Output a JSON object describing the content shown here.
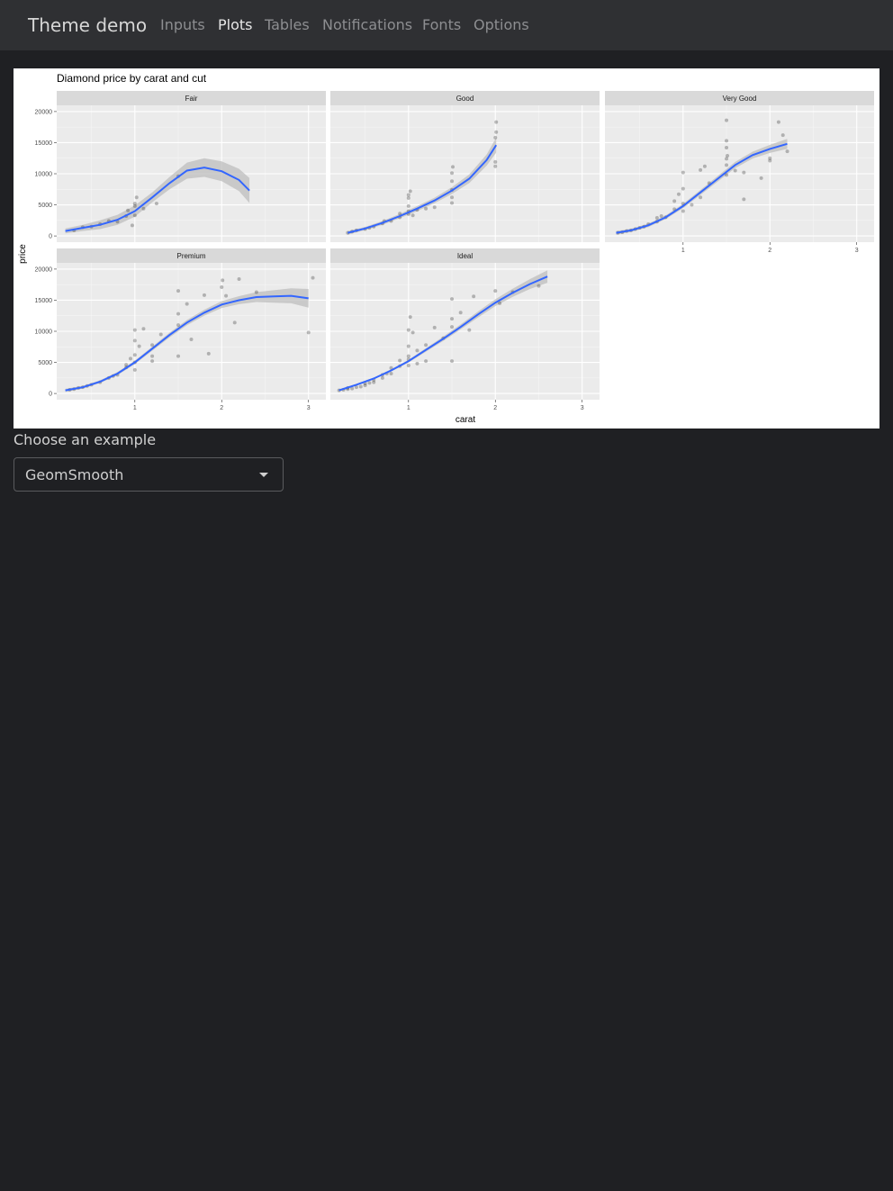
{
  "navbar": {
    "brand": "Theme demo",
    "items": [
      {
        "label": "Inputs",
        "active": false
      },
      {
        "label": "Plots",
        "active": true
      },
      {
        "label": "Tables",
        "active": false
      },
      {
        "label": "Notifications",
        "active": false
      },
      {
        "label": "Fonts",
        "active": false
      },
      {
        "label": "Options",
        "active": false
      }
    ]
  },
  "selector": {
    "label": "Choose an example",
    "value": "GeomSmooth"
  },
  "chart_data": {
    "type": "scatter",
    "title": "Diamond price by carat and cut",
    "xlabel": "carat",
    "ylabel": "price",
    "xlim": [
      0.1,
      3.2
    ],
    "ylim": [
      -1000,
      21000
    ],
    "xticks": [
      1,
      2,
      3
    ],
    "yticks": [
      0,
      5000,
      10000,
      15000,
      20000
    ],
    "grid": true,
    "colors": {
      "smooth": "#3366ff",
      "ribbon": "#bdbdbd",
      "points": "#000000",
      "panel": "#ebebeb",
      "strip": "#d9d9d9"
    },
    "facets": [
      {
        "name": "Fair",
        "points": [
          [
            0.3,
            900
          ],
          [
            0.4,
            1400
          ],
          [
            0.5,
            1500
          ],
          [
            0.6,
            1900
          ],
          [
            0.7,
            2400
          ],
          [
            0.8,
            2300
          ],
          [
            0.9,
            3200
          ],
          [
            0.92,
            4100
          ],
          [
            0.97,
            1700
          ],
          [
            1.0,
            3300
          ],
          [
            1.0,
            4800
          ],
          [
            1.0,
            5200
          ],
          [
            1.02,
            6200
          ],
          [
            1.1,
            4400
          ],
          [
            1.25,
            5200
          ],
          [
            1.5,
            9600
          ]
        ],
        "smooth": [
          [
            0.2,
            800
          ],
          [
            0.4,
            1300
          ],
          [
            0.6,
            1800
          ],
          [
            0.8,
            2600
          ],
          [
            1.0,
            4000
          ],
          [
            1.2,
            6200
          ],
          [
            1.4,
            8500
          ],
          [
            1.6,
            10500
          ],
          [
            1.8,
            11000
          ],
          [
            2.0,
            10400
          ],
          [
            2.2,
            9000
          ],
          [
            2.32,
            7300
          ]
        ],
        "band": [
          400,
          500,
          700,
          800,
          900,
          800,
          1000,
          1300,
          1500,
          1600,
          1800,
          2000
        ]
      },
      {
        "name": "Good",
        "points": [
          [
            0.3,
            500
          ],
          [
            0.35,
            700
          ],
          [
            0.4,
            900
          ],
          [
            0.5,
            1100
          ],
          [
            0.55,
            1300
          ],
          [
            0.6,
            1500
          ],
          [
            0.7,
            2000
          ],
          [
            0.72,
            2400
          ],
          [
            0.8,
            2400
          ],
          [
            0.9,
            3000
          ],
          [
            0.9,
            3600
          ],
          [
            1.0,
            3500
          ],
          [
            1.0,
            4000
          ],
          [
            1.0,
            4800
          ],
          [
            1.0,
            6100
          ],
          [
            1.0,
            6600
          ],
          [
            1.02,
            7200
          ],
          [
            1.05,
            3300
          ],
          [
            1.1,
            4200
          ],
          [
            1.2,
            4400
          ],
          [
            1.3,
            4600
          ],
          [
            1.5,
            5300
          ],
          [
            1.5,
            6200
          ],
          [
            1.5,
            7400
          ],
          [
            1.5,
            8800
          ],
          [
            1.5,
            10100
          ],
          [
            1.51,
            11100
          ],
          [
            2.0,
            11200
          ],
          [
            2.0,
            11900
          ],
          [
            2.0,
            15800
          ],
          [
            2.01,
            16700
          ],
          [
            2.01,
            18300
          ]
        ],
        "smooth": [
          [
            0.3,
            500
          ],
          [
            0.5,
            1200
          ],
          [
            0.7,
            2100
          ],
          [
            0.9,
            3200
          ],
          [
            1.1,
            4400
          ],
          [
            1.3,
            5700
          ],
          [
            1.5,
            7300
          ],
          [
            1.7,
            9200
          ],
          [
            1.9,
            12200
          ],
          [
            2.01,
            14600
          ]
        ],
        "band": [
          300,
          250,
          300,
          350,
          400,
          450,
          550,
          700,
          900,
          1200
        ]
      },
      {
        "name": "Very Good",
        "points": [
          [
            0.25,
            500
          ],
          [
            0.3,
            600
          ],
          [
            0.35,
            800
          ],
          [
            0.4,
            900
          ],
          [
            0.45,
            1100
          ],
          [
            0.5,
            1300
          ],
          [
            0.55,
            1500
          ],
          [
            0.6,
            1900
          ],
          [
            0.7,
            2300
          ],
          [
            0.7,
            2900
          ],
          [
            0.75,
            3200
          ],
          [
            0.8,
            3000
          ],
          [
            0.9,
            4300
          ],
          [
            0.9,
            5600
          ],
          [
            0.95,
            6700
          ],
          [
            1.0,
            4000
          ],
          [
            1.0,
            5200
          ],
          [
            1.0,
            7600
          ],
          [
            1.0,
            10200
          ],
          [
            1.1,
            5000
          ],
          [
            1.2,
            6200
          ],
          [
            1.2,
            10600
          ],
          [
            1.25,
            11200
          ],
          [
            1.3,
            8500
          ],
          [
            1.5,
            9800
          ],
          [
            1.5,
            11400
          ],
          [
            1.5,
            12400
          ],
          [
            1.5,
            14200
          ],
          [
            1.5,
            15300
          ],
          [
            1.5,
            18600
          ],
          [
            1.51,
            12900
          ],
          [
            1.6,
            10500
          ],
          [
            1.7,
            5900
          ],
          [
            1.7,
            10200
          ],
          [
            1.9,
            9300
          ],
          [
            2.0,
            12100
          ],
          [
            2.0,
            12500
          ],
          [
            2.1,
            18300
          ],
          [
            2.15,
            16200
          ],
          [
            2.2,
            13600
          ]
        ],
        "smooth": [
          [
            0.23,
            500
          ],
          [
            0.4,
            900
          ],
          [
            0.6,
            1700
          ],
          [
            0.8,
            3000
          ],
          [
            1.0,
            4800
          ],
          [
            1.2,
            7000
          ],
          [
            1.4,
            9200
          ],
          [
            1.6,
            11400
          ],
          [
            1.8,
            13000
          ],
          [
            2.0,
            14000
          ],
          [
            2.2,
            14800
          ]
        ],
        "band": [
          300,
          250,
          280,
          300,
          350,
          400,
          450,
          500,
          550,
          650,
          800
        ]
      },
      {
        "name": "Premium",
        "points": [
          [
            0.25,
            600
          ],
          [
            0.3,
            700
          ],
          [
            0.35,
            900
          ],
          [
            0.4,
            1000
          ],
          [
            0.45,
            1200
          ],
          [
            0.5,
            1400
          ],
          [
            0.6,
            1800
          ],
          [
            0.7,
            2500
          ],
          [
            0.75,
            2800
          ],
          [
            0.8,
            3000
          ],
          [
            0.9,
            4200
          ],
          [
            0.9,
            4600
          ],
          [
            0.95,
            5600
          ],
          [
            1.0,
            3800
          ],
          [
            1.0,
            5000
          ],
          [
            1.0,
            6200
          ],
          [
            1.0,
            8500
          ],
          [
            1.0,
            10200
          ],
          [
            1.05,
            7600
          ],
          [
            1.1,
            10400
          ],
          [
            1.2,
            5200
          ],
          [
            1.2,
            6000
          ],
          [
            1.2,
            7800
          ],
          [
            1.3,
            9500
          ],
          [
            1.5,
            6000
          ],
          [
            1.5,
            11000
          ],
          [
            1.5,
            12800
          ],
          [
            1.5,
            16500
          ],
          [
            1.6,
            14400
          ],
          [
            1.65,
            8700
          ],
          [
            1.8,
            15800
          ],
          [
            1.85,
            6400
          ],
          [
            2.0,
            17100
          ],
          [
            2.01,
            18200
          ],
          [
            2.05,
            15700
          ],
          [
            2.15,
            11400
          ],
          [
            2.2,
            18400
          ],
          [
            2.4,
            16300
          ],
          [
            3.0,
            9800
          ],
          [
            3.05,
            18600
          ]
        ],
        "smooth": [
          [
            0.2,
            500
          ],
          [
            0.4,
            1000
          ],
          [
            0.6,
            1900
          ],
          [
            0.8,
            3200
          ],
          [
            1.0,
            5000
          ],
          [
            1.2,
            7200
          ],
          [
            1.4,
            9400
          ],
          [
            1.6,
            11400
          ],
          [
            1.8,
            13000
          ],
          [
            2.0,
            14300
          ],
          [
            2.2,
            15000
          ],
          [
            2.4,
            15500
          ],
          [
            2.6,
            15600
          ],
          [
            2.8,
            15700
          ],
          [
            3.0,
            15300
          ]
        ],
        "band": [
          250,
          200,
          220,
          250,
          280,
          320,
          380,
          420,
          480,
          550,
          650,
          800,
          1000,
          1200,
          1500
        ]
      },
      {
        "name": "Ideal",
        "points": [
          [
            0.2,
            500
          ],
          [
            0.25,
            600
          ],
          [
            0.3,
            700
          ],
          [
            0.3,
            900
          ],
          [
            0.35,
            800
          ],
          [
            0.4,
            1000
          ],
          [
            0.45,
            1100
          ],
          [
            0.5,
            1300
          ],
          [
            0.5,
            1600
          ],
          [
            0.55,
            1700
          ],
          [
            0.6,
            1800
          ],
          [
            0.6,
            2200
          ],
          [
            0.7,
            2500
          ],
          [
            0.7,
            3000
          ],
          [
            0.75,
            3200
          ],
          [
            0.8,
            3200
          ],
          [
            0.8,
            4100
          ],
          [
            0.9,
            4400
          ],
          [
            0.9,
            5300
          ],
          [
            1.0,
            4500
          ],
          [
            1.0,
            5500
          ],
          [
            1.0,
            6000
          ],
          [
            1.0,
            7600
          ],
          [
            1.0,
            10200
          ],
          [
            1.02,
            12300
          ],
          [
            1.05,
            9800
          ],
          [
            1.1,
            4800
          ],
          [
            1.1,
            6900
          ],
          [
            1.2,
            5200
          ],
          [
            1.2,
            7800
          ],
          [
            1.3,
            10600
          ],
          [
            1.4,
            8900
          ],
          [
            1.5,
            5200
          ],
          [
            1.5,
            10700
          ],
          [
            1.5,
            12000
          ],
          [
            1.5,
            15200
          ],
          [
            1.6,
            13000
          ],
          [
            1.7,
            10200
          ],
          [
            1.75,
            15600
          ],
          [
            2.0,
            16500
          ],
          [
            2.05,
            14500
          ],
          [
            2.2,
            16300
          ],
          [
            2.5,
            17300
          ]
        ],
        "smooth": [
          [
            0.2,
            500
          ],
          [
            0.4,
            1400
          ],
          [
            0.6,
            2400
          ],
          [
            0.8,
            3700
          ],
          [
            1.0,
            5200
          ],
          [
            1.2,
            7000
          ],
          [
            1.4,
            8800
          ],
          [
            1.6,
            10700
          ],
          [
            1.8,
            12700
          ],
          [
            2.0,
            14600
          ],
          [
            2.2,
            16200
          ],
          [
            2.4,
            17600
          ],
          [
            2.6,
            18800
          ]
        ],
        "band": [
          200,
          150,
          150,
          180,
          220,
          280,
          350,
          400,
          480,
          550,
          650,
          800,
          1000
        ]
      }
    ]
  }
}
